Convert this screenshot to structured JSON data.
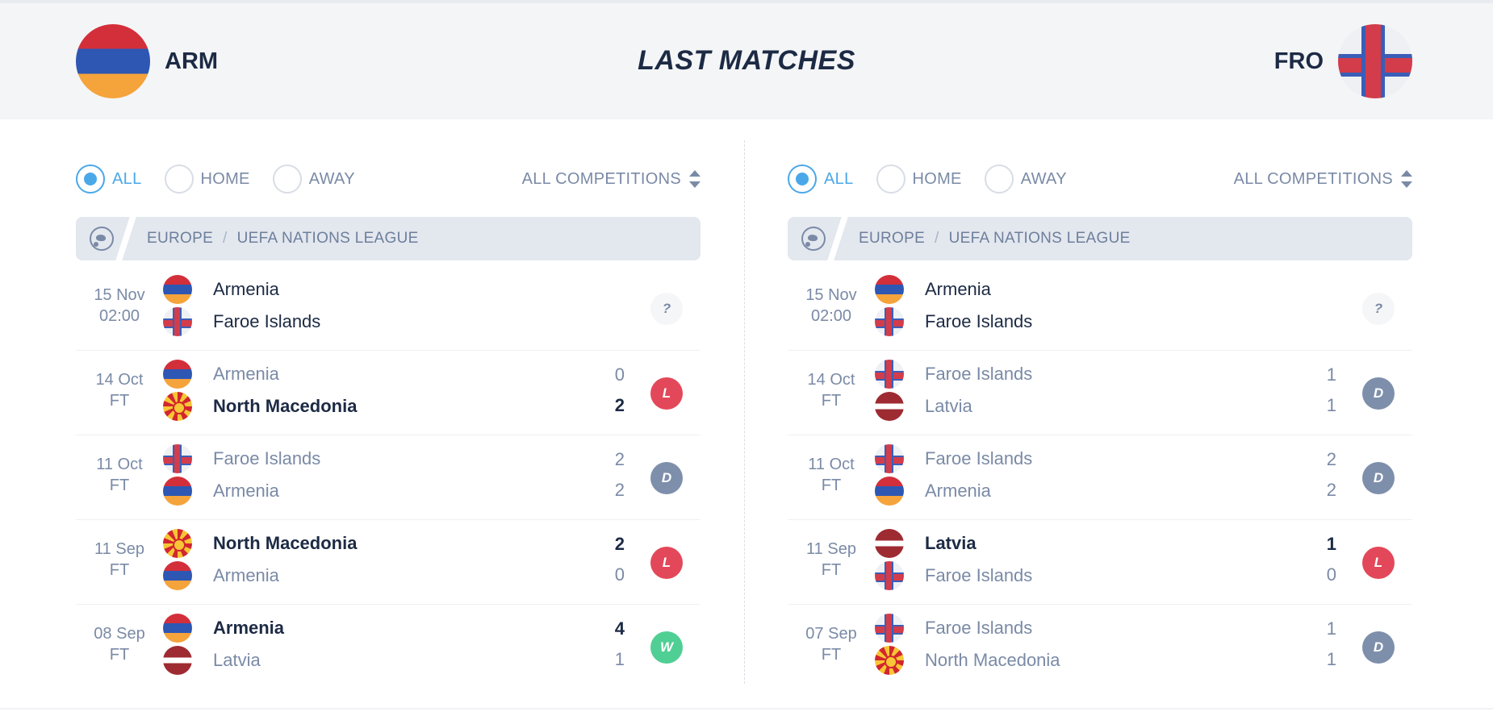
{
  "header": {
    "title": "LAST MATCHES",
    "home_code": "ARM",
    "away_code": "FRO"
  },
  "panels": [
    {
      "filters": {
        "all": "ALL",
        "home": "HOME",
        "away": "AWAY",
        "competitions": "ALL COMPETITIONS"
      },
      "league": {
        "region": "EUROPE",
        "separator": "/",
        "name": "UEFA NATIONS LEAGUE"
      },
      "matches": [
        {
          "date": "15 Nov",
          "time": "02:00",
          "home": "Armenia",
          "away": "Faroe Islands",
          "home_score": "",
          "away_score": "",
          "result": "?"
        },
        {
          "date": "14 Oct",
          "time": "FT",
          "home": "Armenia",
          "away": "North Macedonia",
          "home_score": "0",
          "away_score": "2",
          "result": "L"
        },
        {
          "date": "11 Oct",
          "time": "FT",
          "home": "Faroe Islands",
          "away": "Armenia",
          "home_score": "2",
          "away_score": "2",
          "result": "D"
        },
        {
          "date": "11 Sep",
          "time": "FT",
          "home": "North Macedonia",
          "away": "Armenia",
          "home_score": "2",
          "away_score": "0",
          "result": "L"
        },
        {
          "date": "08 Sep",
          "time": "FT",
          "home": "Armenia",
          "away": "Latvia",
          "home_score": "4",
          "away_score": "1",
          "result": "W"
        }
      ]
    },
    {
      "filters": {
        "all": "ALL",
        "home": "HOME",
        "away": "AWAY",
        "competitions": "ALL COMPETITIONS"
      },
      "league": {
        "region": "EUROPE",
        "separator": "/",
        "name": "UEFA NATIONS LEAGUE"
      },
      "matches": [
        {
          "date": "15 Nov",
          "time": "02:00",
          "home": "Armenia",
          "away": "Faroe Islands",
          "home_score": "",
          "away_score": "",
          "result": "?"
        },
        {
          "date": "14 Oct",
          "time": "FT",
          "home": "Faroe Islands",
          "away": "Latvia",
          "home_score": "1",
          "away_score": "1",
          "result": "D"
        },
        {
          "date": "11 Oct",
          "time": "FT",
          "home": "Faroe Islands",
          "away": "Armenia",
          "home_score": "2",
          "away_score": "2",
          "result": "D"
        },
        {
          "date": "11 Sep",
          "time": "FT",
          "home": "Latvia",
          "away": "Faroe Islands",
          "home_score": "1",
          "away_score": "0",
          "result": "L"
        },
        {
          "date": "07 Sep",
          "time": "FT",
          "home": "Faroe Islands",
          "away": "North Macedonia",
          "home_score": "1",
          "away_score": "1",
          "result": "D"
        }
      ]
    }
  ],
  "colors": {
    "accent": "#4aa8e8",
    "loss": "#e3485a",
    "draw": "#7e8fab",
    "win": "#4fcf94",
    "text_dark": "#1c2a44",
    "text_muted": "#7a8aa6"
  }
}
